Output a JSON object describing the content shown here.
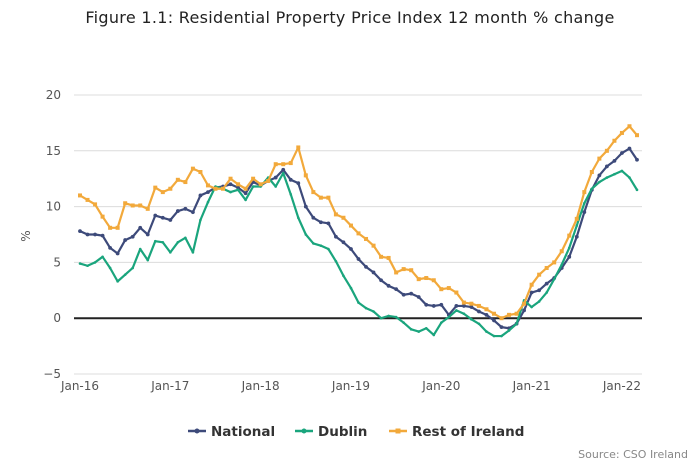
{
  "chart_data": {
    "type": "line",
    "title": "Figure 1.1: Residential Property Price Index 12 month % change",
    "xlabel": "",
    "ylabel": "%",
    "ylim": [
      -5,
      20
    ],
    "yticks": [
      -5,
      0,
      5,
      10,
      15,
      20
    ],
    "x_tick_labels": [
      "Jan-16",
      "Jan-17",
      "Jan-18",
      "Jan-19",
      "Jan-20",
      "Jan-21",
      "Jan-22"
    ],
    "x_range": [
      "Jan-16",
      "Mar-22"
    ],
    "grid": true,
    "legend_position": "bottom",
    "source": "Source: CSO Ireland",
    "series": [
      {
        "name": "National",
        "color": "#3d4a7a",
        "values": [
          7.8,
          7.5,
          7.5,
          7.4,
          6.3,
          5.8,
          7.0,
          7.3,
          8.1,
          7.5,
          9.2,
          9.0,
          8.8,
          9.6,
          9.8,
          9.5,
          11.0,
          11.3,
          11.7,
          11.8,
          12.0,
          11.7,
          11.2,
          12.2,
          11.9,
          12.3,
          12.6,
          13.3,
          12.4,
          12.1,
          10.0,
          9.0,
          8.6,
          8.5,
          7.3,
          6.8,
          6.2,
          5.3,
          4.6,
          4.1,
          3.4,
          2.9,
          2.6,
          2.1,
          2.2,
          1.9,
          1.2,
          1.1,
          1.2,
          0.3,
          1.1,
          1.1,
          1.0,
          0.6,
          0.3,
          -0.2,
          -0.8,
          -0.9,
          -0.5,
          0.7,
          2.3,
          2.5,
          3.1,
          3.6,
          4.5,
          5.5,
          7.3,
          9.5,
          11.5,
          12.8,
          13.6,
          14.1,
          14.8,
          15.2,
          14.2
        ]
      },
      {
        "name": "Dublin",
        "color": "#1aa57d",
        "values": [
          4.9,
          4.7,
          5.0,
          5.5,
          4.5,
          3.3,
          3.9,
          4.5,
          6.2,
          5.2,
          6.9,
          6.8,
          5.9,
          6.8,
          7.2,
          5.9,
          8.8,
          10.4,
          11.8,
          11.6,
          11.3,
          11.5,
          10.6,
          11.8,
          11.8,
          12.6,
          11.8,
          13.0,
          11.1,
          9.0,
          7.5,
          6.7,
          6.5,
          6.2,
          5.1,
          3.8,
          2.7,
          1.4,
          0.9,
          0.6,
          0.0,
          0.2,
          0.1,
          -0.4,
          -1.0,
          -1.2,
          -0.9,
          -1.5,
          -0.4,
          0.1,
          0.7,
          0.4,
          -0.1,
          -0.5,
          -1.2,
          -1.6,
          -1.6,
          -1.1,
          -0.5,
          1.6,
          1.0,
          1.5,
          2.3,
          3.5,
          4.8,
          6.3,
          8.3,
          10.3,
          11.6,
          12.2,
          12.6,
          12.9,
          13.2,
          12.6,
          11.5
        ]
      },
      {
        "name": "Rest of Ireland",
        "color": "#f2a93b",
        "values": [
          11.0,
          10.6,
          10.2,
          9.1,
          8.1,
          8.1,
          10.3,
          10.1,
          10.1,
          9.8,
          11.7,
          11.3,
          11.6,
          12.4,
          12.2,
          13.4,
          13.1,
          11.9,
          11.6,
          11.6,
          12.5,
          12.0,
          11.6,
          12.5,
          12.0,
          12.3,
          13.8,
          13.8,
          13.9,
          15.3,
          12.8,
          11.3,
          10.8,
          10.8,
          9.3,
          9.0,
          8.3,
          7.6,
          7.1,
          6.5,
          5.5,
          5.4,
          4.1,
          4.4,
          4.3,
          3.5,
          3.6,
          3.4,
          2.6,
          2.7,
          2.3,
          1.4,
          1.3,
          1.1,
          0.8,
          0.4,
          0.0,
          0.3,
          0.4,
          1.3,
          3.0,
          3.9,
          4.5,
          5.0,
          6.0,
          7.4,
          8.9,
          11.3,
          13.1,
          14.3,
          15.0,
          15.9,
          16.6,
          17.2,
          16.4
        ]
      }
    ]
  }
}
